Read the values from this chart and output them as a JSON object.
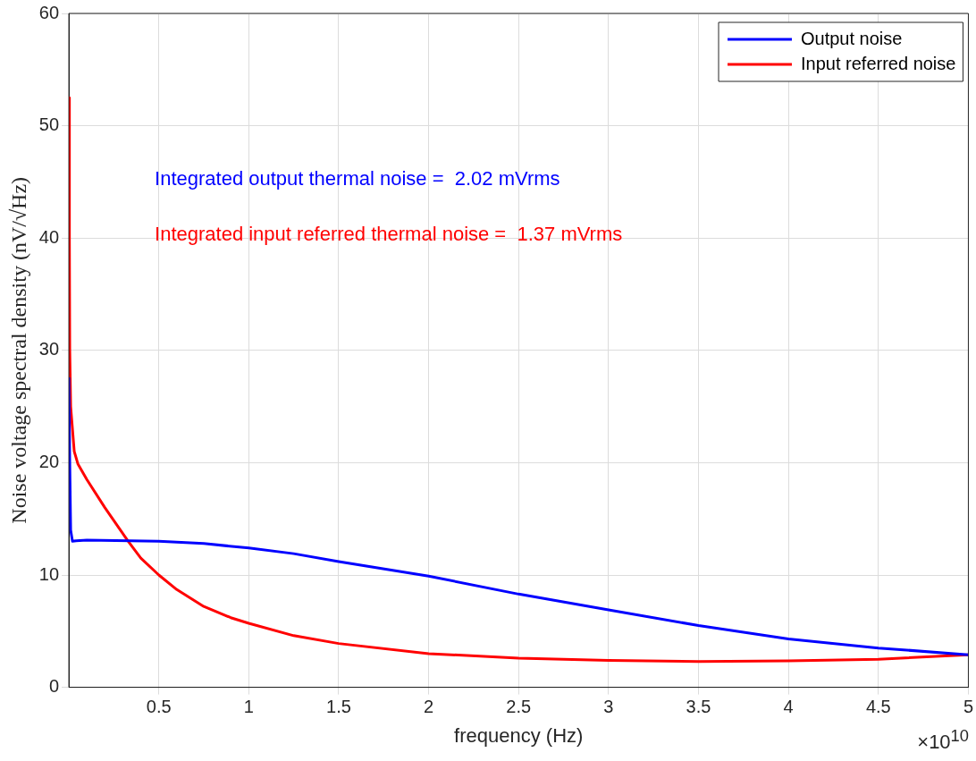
{
  "chart_data": {
    "type": "line",
    "xlabel": "frequency (Hz)",
    "ylabel": "Noise voltage spectral density (nV/√Hz)",
    "xlim": [
      0,
      5
    ],
    "ylim": [
      0,
      60
    ],
    "xticks": [
      0.5,
      1,
      1.5,
      2,
      2.5,
      3,
      3.5,
      4,
      4.5,
      5
    ],
    "yticks": [
      0,
      10,
      20,
      30,
      40,
      50,
      60
    ],
    "grid": true,
    "legend": "top right",
    "marker": "none",
    "line_style": "solid",
    "series": [
      {
        "name": "Output noise",
        "color": "#0000ff",
        "x": [
          0,
          0.005,
          0.01,
          0.02,
          0.04,
          0.1,
          0.5,
          0.75,
          1,
          1.25,
          1.5,
          2,
          2.5,
          3,
          3.5,
          4,
          4.5,
          5
        ],
        "values": [
          27.6,
          20,
          14,
          13.0,
          13.05,
          13.1,
          13.0,
          12.8,
          12.4,
          11.9,
          11.2,
          9.9,
          8.3,
          6.9,
          5.5,
          4.3,
          3.5,
          2.9
        ]
      },
      {
        "name": "Input referred noise",
        "color": "#ff0000",
        "x": [
          0,
          0.003,
          0.005,
          0.01,
          0.03,
          0.05,
          0.1,
          0.2,
          0.33,
          0.4,
          0.5,
          0.6,
          0.75,
          0.9,
          1,
          1.25,
          1.5,
          2,
          2.5,
          3,
          3.5,
          4,
          4.5,
          5
        ],
        "values": [
          52.5,
          40,
          30,
          25,
          21,
          19.9,
          18.5,
          16,
          13,
          11.5,
          10,
          8.7,
          7.2,
          6.2,
          5.7,
          4.6,
          3.9,
          3.0,
          2.6,
          2.4,
          2.3,
          2.35,
          2.5,
          2.9
        ]
      }
    ],
    "annotations": [
      "Integrated output thermal noise =  2.02 mVrms",
      "Integrated input referred thermal noise =  1.37 mVrms",
      "×10$^{10}$"
    ]
  }
}
